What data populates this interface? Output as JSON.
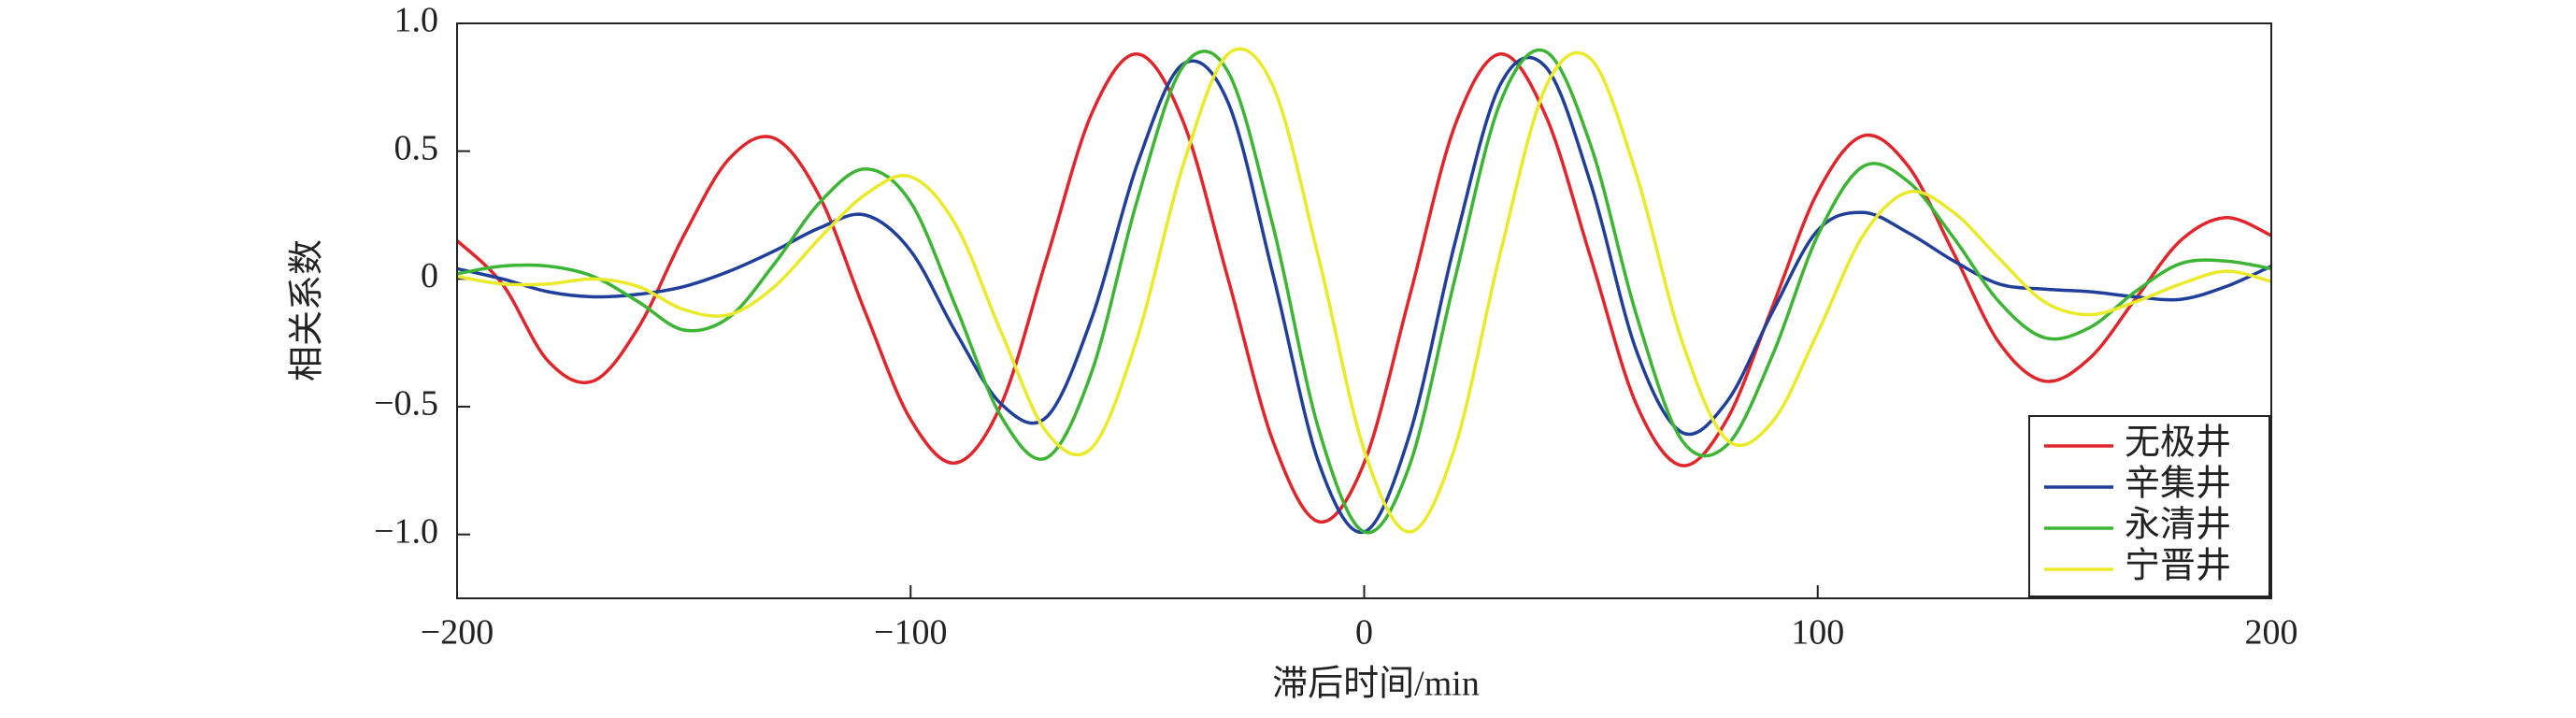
{
  "chart_data": {
    "type": "line",
    "xlabel": "滞后时间/min",
    "ylabel": "相关系数",
    "x": [
      -200,
      -190,
      -180,
      -170,
      -160,
      -150,
      -140,
      -130,
      -120,
      -110,
      -100,
      -90,
      -80,
      -70,
      -60,
      -50,
      -40,
      -30,
      -20,
      -10,
      0,
      10,
      20,
      30,
      40,
      50,
      60,
      70,
      80,
      90,
      100,
      110,
      120,
      130,
      140,
      150,
      160,
      170,
      180,
      190,
      200
    ],
    "series": [
      {
        "name": "无极井",
        "color": "#e0252b",
        "values": [
          0.15,
          -0.02,
          -0.32,
          -0.4,
          -0.19,
          0.17,
          0.47,
          0.55,
          0.32,
          -0.13,
          -0.55,
          -0.72,
          -0.49,
          0.08,
          0.65,
          0.88,
          0.62,
          0.0,
          -0.64,
          -0.95,
          -0.72,
          -0.07,
          0.6,
          0.88,
          0.64,
          0.08,
          -0.49,
          -0.73,
          -0.55,
          -0.11,
          0.34,
          0.56,
          0.44,
          0.1,
          -0.25,
          -0.4,
          -0.31,
          -0.08,
          0.15,
          0.24,
          0.17
        ]
      },
      {
        "name": "辛集井",
        "color": "#1f3f9a",
        "values": [
          0.04,
          0.0,
          -0.05,
          -0.07,
          -0.06,
          -0.03,
          0.03,
          0.11,
          0.2,
          0.25,
          0.11,
          -0.21,
          -0.49,
          -0.54,
          -0.15,
          0.45,
          0.84,
          0.69,
          0.01,
          -0.72,
          -0.99,
          -0.61,
          0.14,
          0.76,
          0.83,
          0.37,
          -0.28,
          -0.6,
          -0.48,
          -0.13,
          0.19,
          0.26,
          0.18,
          0.07,
          -0.02,
          -0.04,
          -0.05,
          -0.07,
          -0.08,
          -0.03,
          0.05
        ]
      },
      {
        "name": "永清井",
        "color": "#3db534",
        "values": [
          0.02,
          0.05,
          0.05,
          0.01,
          -0.09,
          -0.2,
          -0.15,
          0.06,
          0.3,
          0.43,
          0.3,
          -0.11,
          -0.54,
          -0.7,
          -0.36,
          0.31,
          0.83,
          0.81,
          0.2,
          -0.59,
          -0.99,
          -0.73,
          0.0,
          0.69,
          0.89,
          0.52,
          -0.14,
          -0.63,
          -0.65,
          -0.3,
          0.17,
          0.44,
          0.38,
          0.16,
          -0.09,
          -0.23,
          -0.19,
          -0.05,
          0.06,
          0.07,
          0.04
        ]
      },
      {
        "name": "宁晋井",
        "color": "#eaea2a",
        "values": [
          0.01,
          -0.02,
          -0.02,
          0.0,
          -0.03,
          -0.12,
          -0.14,
          -0.03,
          0.16,
          0.33,
          0.4,
          0.21,
          -0.21,
          -0.6,
          -0.66,
          -0.23,
          0.44,
          0.88,
          0.75,
          0.08,
          -0.67,
          -0.99,
          -0.66,
          0.1,
          0.75,
          0.86,
          0.41,
          -0.24,
          -0.63,
          -0.56,
          -0.21,
          0.17,
          0.34,
          0.26,
          0.08,
          -0.09,
          -0.14,
          -0.09,
          -0.02,
          0.03,
          -0.01
        ]
      }
    ],
    "xlim": [
      -200,
      200
    ],
    "xticks": [
      {
        "value": -200,
        "label": "−200"
      },
      {
        "value": -100,
        "label": "−100"
      },
      0,
      100,
      200
    ],
    "ylim": [
      -1.25,
      1.0
    ],
    "yticks": [
      {
        "value": -1,
        "label": "−1.0"
      },
      {
        "value": -0.5,
        "label": "−0.5"
      },
      0,
      0.5,
      {
        "value": 1,
        "label": "1.0"
      }
    ],
    "legend": "lower right",
    "grid": false
  }
}
